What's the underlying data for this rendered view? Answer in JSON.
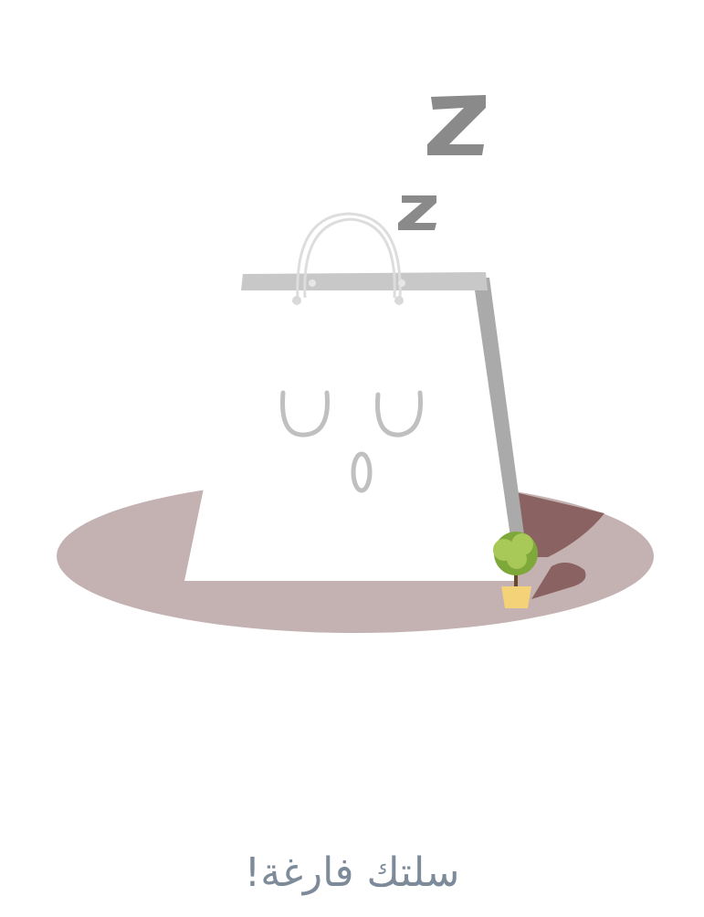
{
  "empty_cart": {
    "message": "سلتك فارغة!",
    "illustration_icon": "sleeping-shopping-bag-icon"
  },
  "colors": {
    "message_text": "#7d8a99",
    "floor_shadow": "#c4b1b1",
    "floor_shadow_dark": "#8b6262",
    "bag_body": "#ffffff",
    "bag_side": "#aaaaaa",
    "bag_rim": "#c8c8c8",
    "bag_handle": "#dddddd",
    "face_lines": "#c0c0c0",
    "zzz": "#8a8a8a",
    "plant_leaves": "#7ea83a",
    "plant_leaves_light": "#a8c858",
    "plant_pot": "#f4d277"
  }
}
